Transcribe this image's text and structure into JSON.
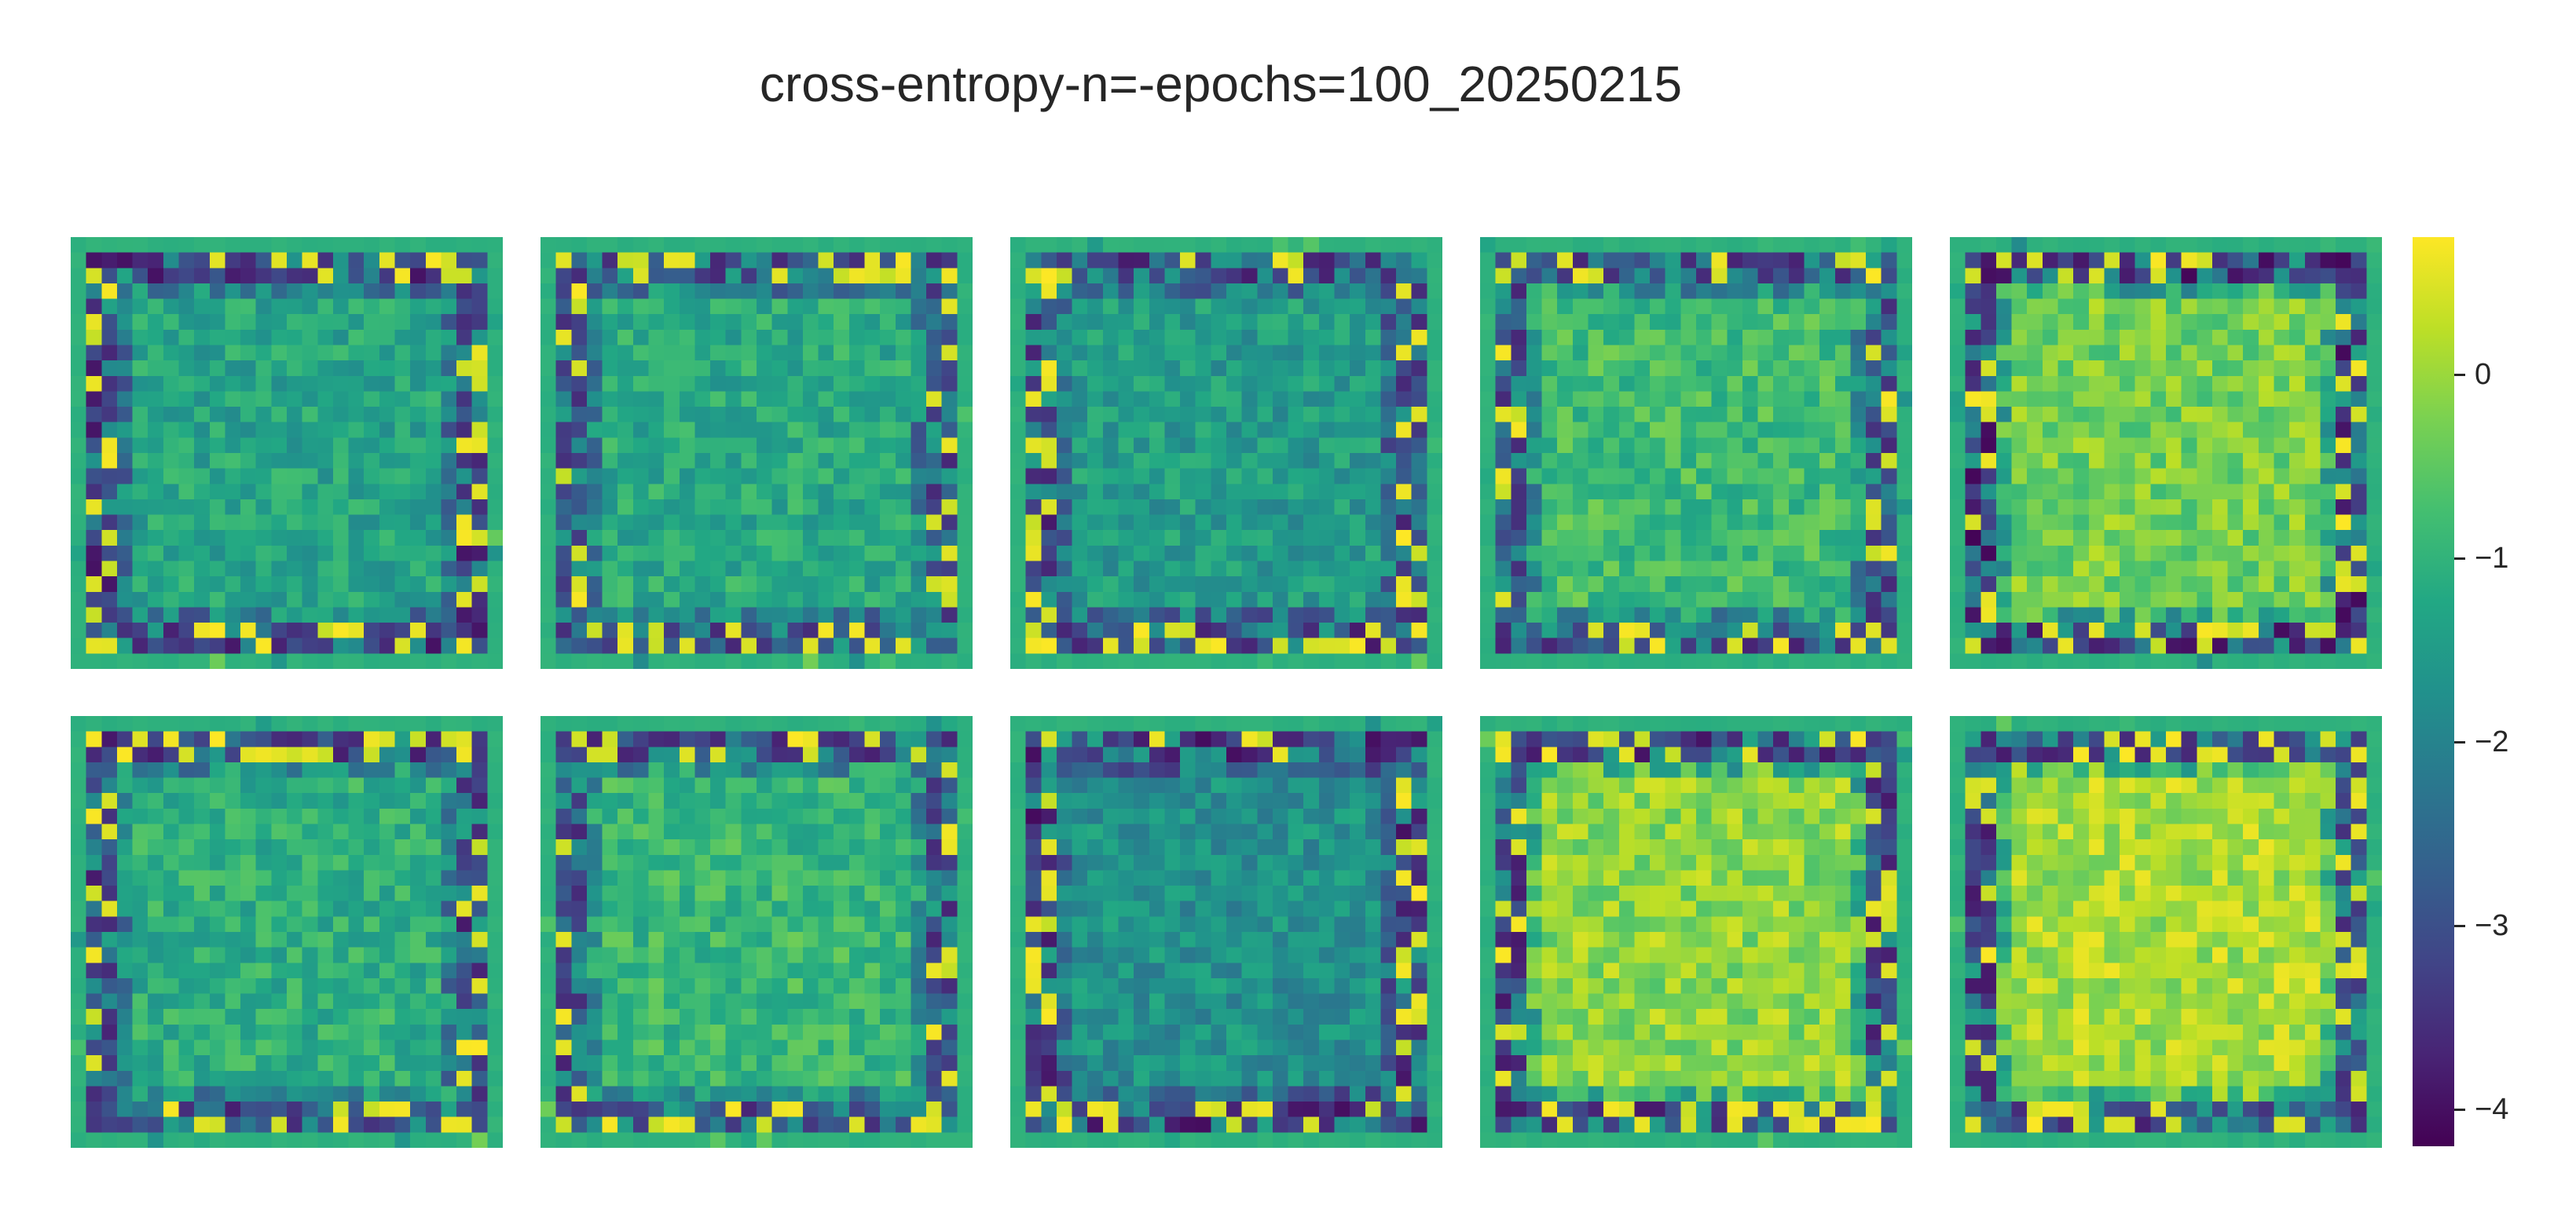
{
  "title": "cross-entropy-n=-epochs=100_20250215",
  "chart_data": {
    "type": "heatmap",
    "title": "cross-entropy-n=-epochs=100_20250215",
    "layout": {
      "rows": 2,
      "cols": 5
    },
    "grid_size": 28,
    "colormap": "viridis",
    "value_range": [
      -4.2,
      0.75
    ],
    "background_value": -1.05,
    "colorbar": {
      "ticks": [
        0,
        -1,
        -2,
        -3,
        -4
      ],
      "tick_labels": [
        "0",
        "−1",
        "−2",
        "−3",
        "−4"
      ]
    },
    "panels": [
      {
        "index": 1,
        "center_value": -1.3,
        "ring_value": -3.6,
        "edge_bright": "left",
        "dark_sides": [
          "right",
          "bottom"
        ]
      },
      {
        "index": 2,
        "center_value": -1.2,
        "ring_value": -3.3,
        "edge_bright": "left-right",
        "dark_sides": [
          "right",
          "bottom"
        ]
      },
      {
        "index": 3,
        "center_value": -1.5,
        "ring_value": -3.5,
        "edge_bright": "right",
        "dark_sides": [
          "left",
          "bottom"
        ]
      },
      {
        "index": 4,
        "center_value": -0.8,
        "ring_value": -3.4,
        "edge_bright": "left",
        "dark_sides": [
          "right"
        ]
      },
      {
        "index": 5,
        "center_value": -0.3,
        "ring_value": -3.8,
        "edge_bright": "all",
        "dark_sides": [
          "top"
        ]
      },
      {
        "index": 6,
        "center_value": -1.1,
        "ring_value": -3.5,
        "edge_bright": "right",
        "dark_sides": [
          "left"
        ]
      },
      {
        "index": 7,
        "center_value": -0.9,
        "ring_value": -3.4,
        "edge_bright": "top",
        "dark_sides": [
          "bottom"
        ]
      },
      {
        "index": 8,
        "center_value": -1.7,
        "ring_value": -3.7,
        "edge_bright": "left",
        "dark_sides": [
          "top",
          "right"
        ]
      },
      {
        "index": 9,
        "center_value": -0.1,
        "ring_value": -3.6,
        "edge_bright": "bottom",
        "dark_sides": [
          "top",
          "left"
        ]
      },
      {
        "index": 10,
        "center_value": 0.1,
        "ring_value": -3.5,
        "edge_bright": "bottom",
        "dark_sides": [
          "top"
        ]
      }
    ]
  }
}
